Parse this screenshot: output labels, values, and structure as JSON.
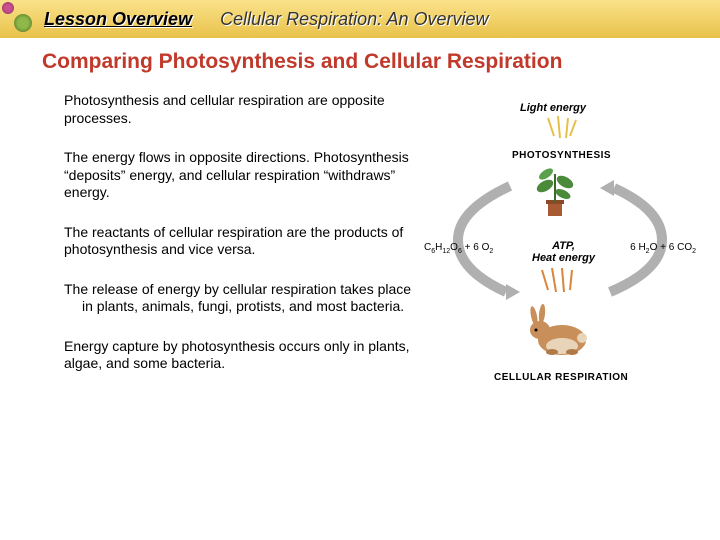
{
  "header": {
    "lesson_overview": "Lesson Overview",
    "chapter_title": "Cellular Respiration: An Overview"
  },
  "title": "Comparing Photosynthesis and Cellular Respiration",
  "paragraphs": {
    "p1": "Photosynthesis and cellular respiration are opposite processes.",
    "p2": "The energy flows in opposite directions. Photosynthesis “deposits” energy, and cellular respiration “withdraws” energy.",
    "p3": "The reactants of cellular respiration are the products of photosynthesis and vice versa.",
    "p4": "The release of energy by cellular respiration takes place in plants, animals, fungi, protists, and most bacteria.",
    "p5": "Energy capture by photosynthesis occurs only in plants, algae, and some bacteria."
  },
  "diagram": {
    "light_energy": "Light energy",
    "photosynthesis": "PHOTOSYNTHESIS",
    "left_formula_html": "C<sub>6</sub>H<sub>12</sub>O<sub>6</sub> + 6 O<sub>2</sub>",
    "right_formula_html": "6 H<sub>2</sub>O + 6 CO<sub>2</sub>",
    "atp": "ATP,",
    "heat": "Heat energy",
    "cellular_respiration": "CELLULAR RESPIRATION",
    "colors": {
      "arrow": "#b0b0b0",
      "ray": "#e6c14a",
      "plant_stem": "#3a6b2a",
      "plant_leaf": "#4a8a3a",
      "pot": "#a85a32",
      "rabbit_body": "#c98f5a",
      "rabbit_belly": "#e8d4b8",
      "heat_ray": "#d9853b"
    }
  }
}
